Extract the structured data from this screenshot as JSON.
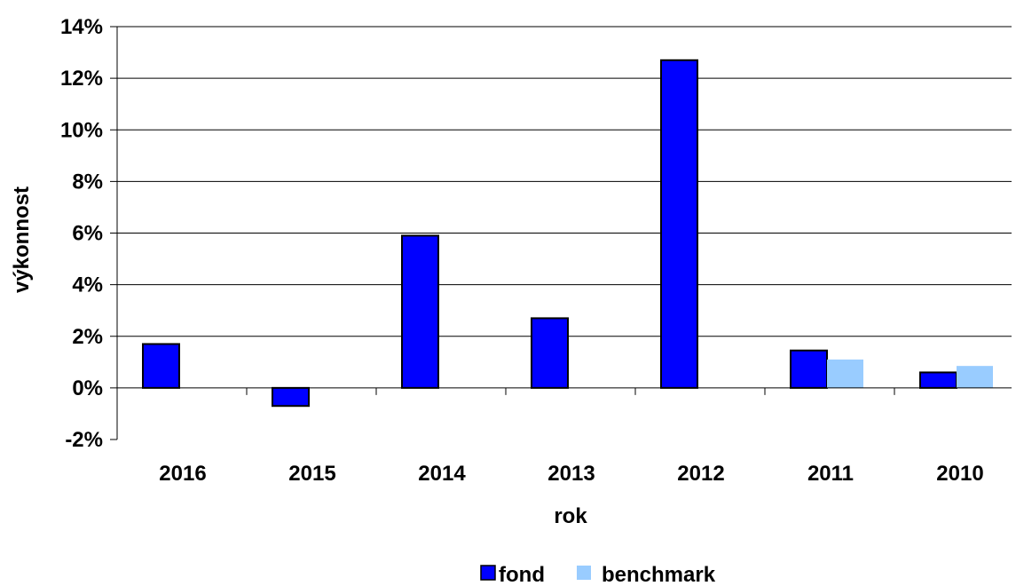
{
  "chart_data": {
    "type": "bar",
    "title": "",
    "xlabel": "rok",
    "ylabel": "výkonnost",
    "categories": [
      "2016",
      "2015",
      "2014",
      "2013",
      "2012",
      "2011",
      "2010"
    ],
    "ylim": [
      -2,
      14
    ],
    "y_ticks": [
      -2,
      0,
      2,
      4,
      6,
      8,
      10,
      12,
      14
    ],
    "y_tick_labels": [
      "-2%",
      "0%",
      "2%",
      "4%",
      "6%",
      "8%",
      "10%",
      "12%",
      "14%"
    ],
    "grid": true,
    "legend_position": "bottom",
    "series": [
      {
        "name": "fond",
        "color": "#0000ff",
        "values": [
          1.7,
          -0.7,
          5.9,
          2.7,
          12.7,
          1.45,
          0.6
        ]
      },
      {
        "name": "benchmark",
        "color": "#99ccff",
        "values": [
          null,
          null,
          null,
          null,
          null,
          1.1,
          0.85
        ]
      }
    ]
  }
}
